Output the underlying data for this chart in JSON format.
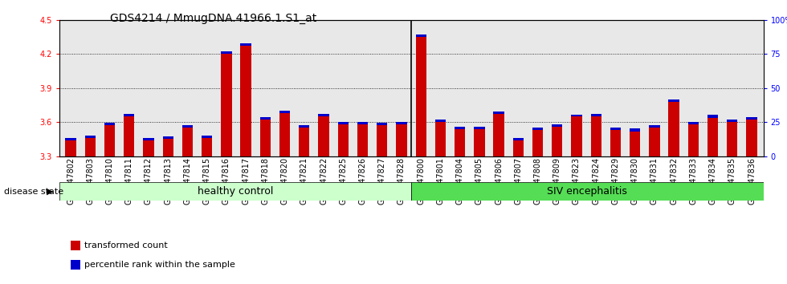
{
  "title": "GDS4214 / MmugDNA.41966.1.S1_at",
  "samples": [
    "GSM347802",
    "GSM347803",
    "GSM347810",
    "GSM347811",
    "GSM347812",
    "GSM347813",
    "GSM347814",
    "GSM347815",
    "GSM347816",
    "GSM347817",
    "GSM347818",
    "GSM347820",
    "GSM347821",
    "GSM347822",
    "GSM347825",
    "GSM347826",
    "GSM347827",
    "GSM347828",
    "GSM347800",
    "GSM347801",
    "GSM347804",
    "GSM347805",
    "GSM347806",
    "GSM347807",
    "GSM347808",
    "GSM347809",
    "GSM347823",
    "GSM347824",
    "GSM347829",
    "GSM347830",
    "GSM347831",
    "GSM347832",
    "GSM347833",
    "GSM347834",
    "GSM347835",
    "GSM347836"
  ],
  "red_values": [
    3.44,
    3.46,
    3.57,
    3.65,
    3.44,
    3.45,
    3.55,
    3.46,
    4.2,
    4.27,
    3.62,
    3.68,
    3.55,
    3.65,
    3.58,
    3.58,
    3.57,
    3.58,
    4.35,
    3.6,
    3.54,
    3.54,
    3.67,
    3.44,
    3.53,
    3.56,
    3.65,
    3.65,
    3.53,
    3.52,
    3.55,
    3.78,
    3.58,
    3.64,
    3.6,
    3.62
  ],
  "blue_values": [
    0.022,
    0.022,
    0.022,
    0.022,
    0.018,
    0.022,
    0.022,
    0.022,
    0.022,
    0.022,
    0.022,
    0.022,
    0.022,
    0.022,
    0.022,
    0.022,
    0.022,
    0.022,
    0.022,
    0.022,
    0.022,
    0.022,
    0.022,
    0.022,
    0.022,
    0.022,
    0.012,
    0.022,
    0.022,
    0.022,
    0.022,
    0.022,
    0.022,
    0.022,
    0.022,
    0.022
  ],
  "group1_count": 18,
  "group2_count": 18,
  "group1_label": "healthy control",
  "group2_label": "SIV encephalitis",
  "group1_color": "#ccffcc",
  "group2_color": "#55dd55",
  "ylim_left": [
    3.3,
    4.5
  ],
  "ylim_right": [
    0,
    100
  ],
  "yticks_left": [
    3.3,
    3.6,
    3.9,
    4.2,
    4.5
  ],
  "yticks_right": [
    0,
    25,
    50,
    75,
    100
  ],
  "ytick_labels_right": [
    "0",
    "25",
    "50",
    "75",
    "100%"
  ],
  "bar_color_red": "#cc0000",
  "bar_color_blue": "#0000cc",
  "grid_color": "#000000",
  "bg_color": "#e8e8e8",
  "legend_red": "transformed count",
  "legend_blue": "percentile rank within the sample",
  "title_fontsize": 10,
  "tick_fontsize": 7,
  "group_fontsize": 9
}
